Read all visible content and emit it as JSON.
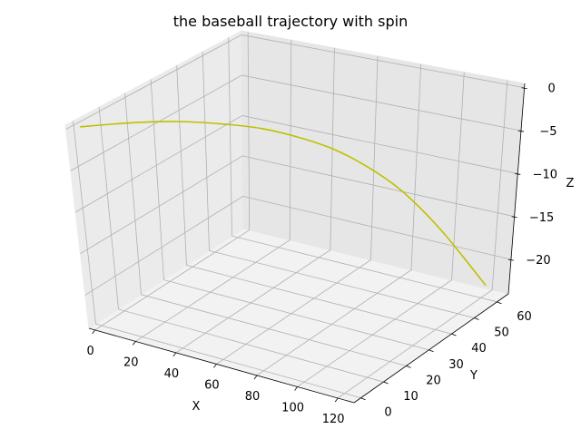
{
  "chart_data": {
    "type": "line",
    "projection": "3d",
    "title": "the baseball trajectory with spin",
    "xlabel": "X",
    "ylabel": "Y",
    "zlabel": "Z",
    "x_ticks": [
      "0",
      "20",
      "40",
      "60",
      "80",
      "100",
      "120"
    ],
    "y_ticks": [
      "0",
      "10",
      "20",
      "30",
      "40",
      "50",
      "60"
    ],
    "z_ticks": [
      "0",
      "−5",
      "−10",
      "−15",
      "−20"
    ],
    "xlim": [
      -3,
      128
    ],
    "ylim": [
      -3,
      65
    ],
    "zlim": [
      -24,
      0.5
    ],
    "grid": true,
    "series": [
      {
        "color": "#bfbf00",
        "points": [
          [
            0,
            0,
            0
          ],
          [
            10.3,
            10.4,
            -0.6
          ],
          [
            20.5,
            20.3,
            -1.5
          ],
          [
            30.3,
            28.9,
            -2.7
          ],
          [
            40.0,
            36.7,
            -4.1
          ],
          [
            50.2,
            43.5,
            -5.9
          ],
          [
            60.0,
            49.3,
            -7.9
          ],
          [
            70.1,
            54.0,
            -10.3
          ],
          [
            80.0,
            57.6,
            -12.8
          ],
          [
            90.0,
            60.0,
            -15.5
          ],
          [
            100.0,
            61.3,
            -18.1
          ],
          [
            110.0,
            61.8,
            -20.6
          ],
          [
            120.0,
            61.9,
            -22.9
          ]
        ]
      }
    ]
  }
}
